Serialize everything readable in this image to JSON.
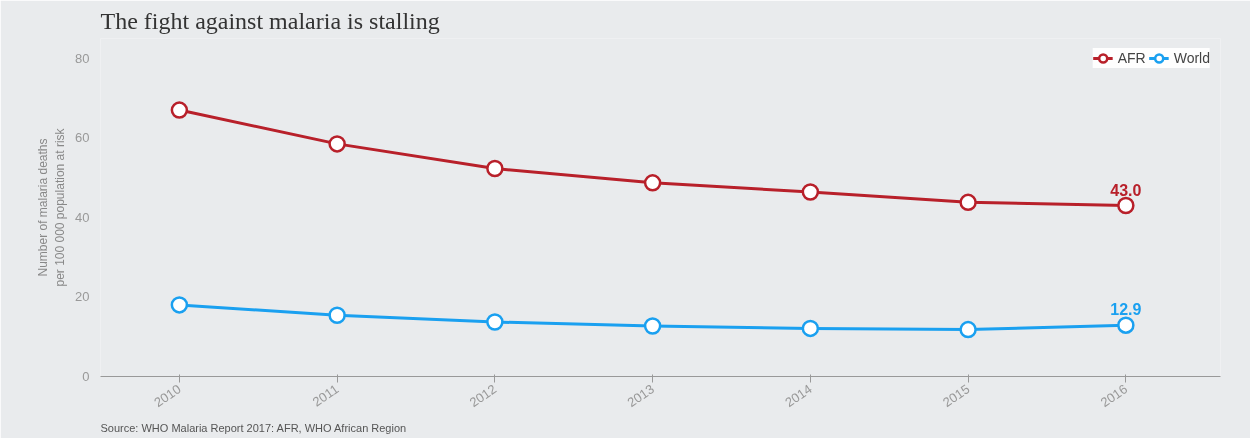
{
  "chart_data": {
    "type": "line",
    "title": "The fight against malaria is stalling",
    "ylabel": "Number of malaria deaths\nper 100 000 population at risk",
    "categories": [
      "2010",
      "2011",
      "2012",
      "2013",
      "2014",
      "2015",
      "2016"
    ],
    "series": [
      {
        "name": "AFR",
        "color": "#b8202a",
        "values": [
          67,
          58.5,
          52.3,
          48.7,
          46.4,
          43.8,
          43.0
        ],
        "value_labels": [
          null,
          null,
          null,
          null,
          null,
          null,
          "43.0"
        ]
      },
      {
        "name": "World",
        "color": "#1aa0f0",
        "values": [
          18,
          15.4,
          13.7,
          12.7,
          12.1,
          11.8,
          12.9
        ],
        "value_labels": [
          null,
          null,
          null,
          null,
          null,
          null,
          "12.9"
        ]
      }
    ],
    "ylim": [
      0,
      85
    ],
    "yticks": [
      0,
      20,
      40,
      60,
      80
    ],
    "grid": false,
    "legend": "top right",
    "marker": "circle",
    "line_style": "solid",
    "annotations": [
      "Source: WHO Malaria Report 2017: AFR, WHO African Region"
    ]
  }
}
